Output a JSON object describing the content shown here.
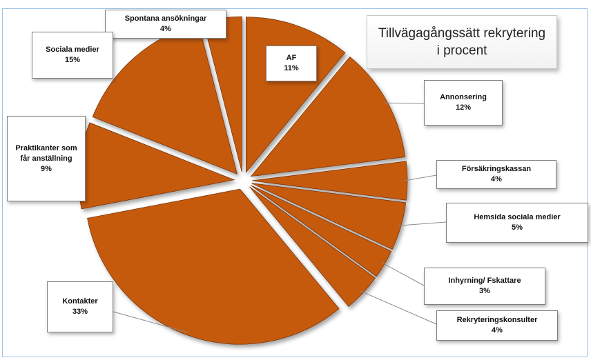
{
  "chart_data": {
    "type": "pie",
    "title": "Tillvägagångssätt rekrytering i procent",
    "slices": [
      {
        "name": "AF",
        "label": "11%",
        "value": 11
      },
      {
        "name": "Annonsering",
        "label": "12%",
        "value": 12
      },
      {
        "name": "Försäkringskassan",
        "label": "4%",
        "value": 4
      },
      {
        "name": "Hemsida sociala medier",
        "label": "5%",
        "value": 5
      },
      {
        "name": "Inhyrning/ Fskattare",
        "label": "3%",
        "value": 3
      },
      {
        "name": "Rekryteringskonsulter",
        "label": "4%",
        "value": 4
      },
      {
        "name": "Kontakter",
        "label": "33%",
        "value": 33
      },
      {
        "name": "Praktikanter som får anställning",
        "label": "9%",
        "value": 9
      },
      {
        "name": "Sociala medier",
        "label": "15%",
        "value": 15
      },
      {
        "name": "Spontana ansökningar",
        "label": "4%",
        "value": 4
      }
    ],
    "colors": {
      "slice_fill": "#c55a11",
      "slice_stroke": "#7a3608",
      "leader": "#8c8c8c"
    }
  }
}
